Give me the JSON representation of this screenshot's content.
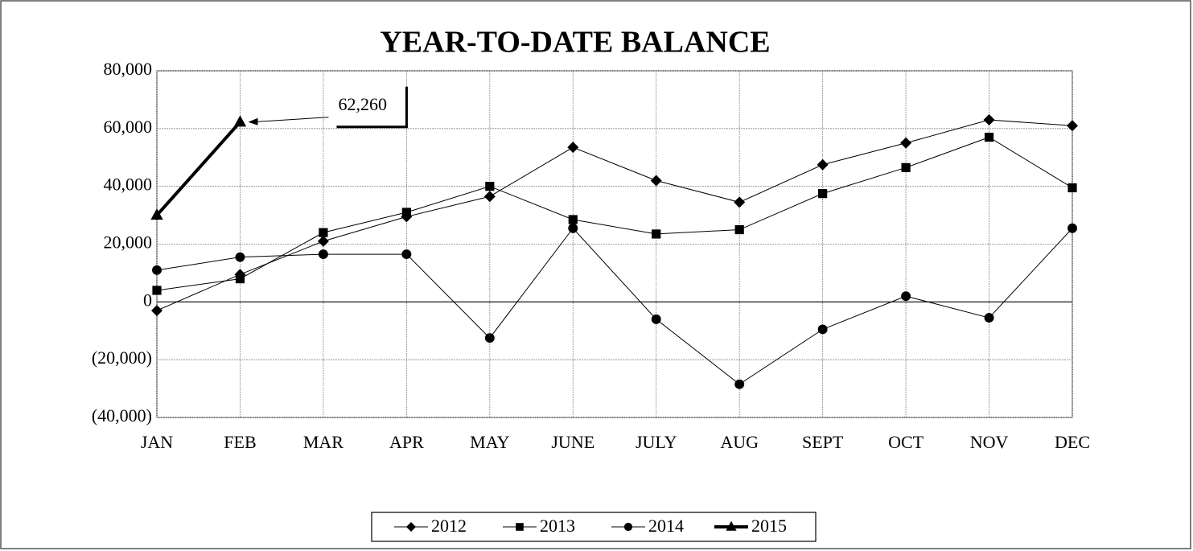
{
  "chart_data": {
    "type": "line",
    "title": "YEAR-TO-DATE BALANCE",
    "categories": [
      "JAN",
      "FEB",
      "MAR",
      "APR",
      "MAY",
      "JUNE",
      "JULY",
      "AUG",
      "SEPT",
      "OCT",
      "NOV",
      "DEC"
    ],
    "series": [
      {
        "name": "2012",
        "color": "#000000",
        "marker": "diamond",
        "line_width": 1,
        "values": [
          -3000,
          9500,
          21000,
          29500,
          36500,
          53500,
          42000,
          34500,
          47500,
          55000,
          63000,
          61000
        ]
      },
      {
        "name": "2013",
        "color": "#000000",
        "marker": "square",
        "line_width": 1,
        "values": [
          4000,
          8000,
          24000,
          31000,
          40000,
          28500,
          23500,
          25000,
          37500,
          46500,
          57000,
          39500
        ]
      },
      {
        "name": "2014",
        "color": "#000000",
        "marker": "circle",
        "line_width": 1,
        "values": [
          11000,
          15500,
          16500,
          16500,
          -12500,
          25500,
          -6000,
          -28500,
          -9500,
          2000,
          -5500,
          25500
        ]
      },
      {
        "name": "2015",
        "color": "#000000",
        "marker": "triangle",
        "line_width": 4,
        "values": [
          30000,
          62260,
          null,
          null,
          null,
          null,
          null,
          null,
          null,
          null,
          null,
          null
        ],
        "value_labels": [
          null,
          "62,260",
          null,
          null,
          null,
          null,
          null,
          null,
          null,
          null,
          null,
          null
        ]
      }
    ],
    "ylim": [
      -40000,
      80000
    ],
    "yticks": [
      {
        "value": -40000,
        "label": "(40,000)"
      },
      {
        "value": -20000,
        "label": "(20,000)"
      },
      0,
      {
        "value": 20000,
        "label": "20,000"
      },
      {
        "value": 40000,
        "label": "40,000"
      },
      {
        "value": 60000,
        "label": "60,000"
      },
      {
        "value": 80000,
        "label": "80,000"
      }
    ],
    "grid": true,
    "legend": "bottom"
  }
}
